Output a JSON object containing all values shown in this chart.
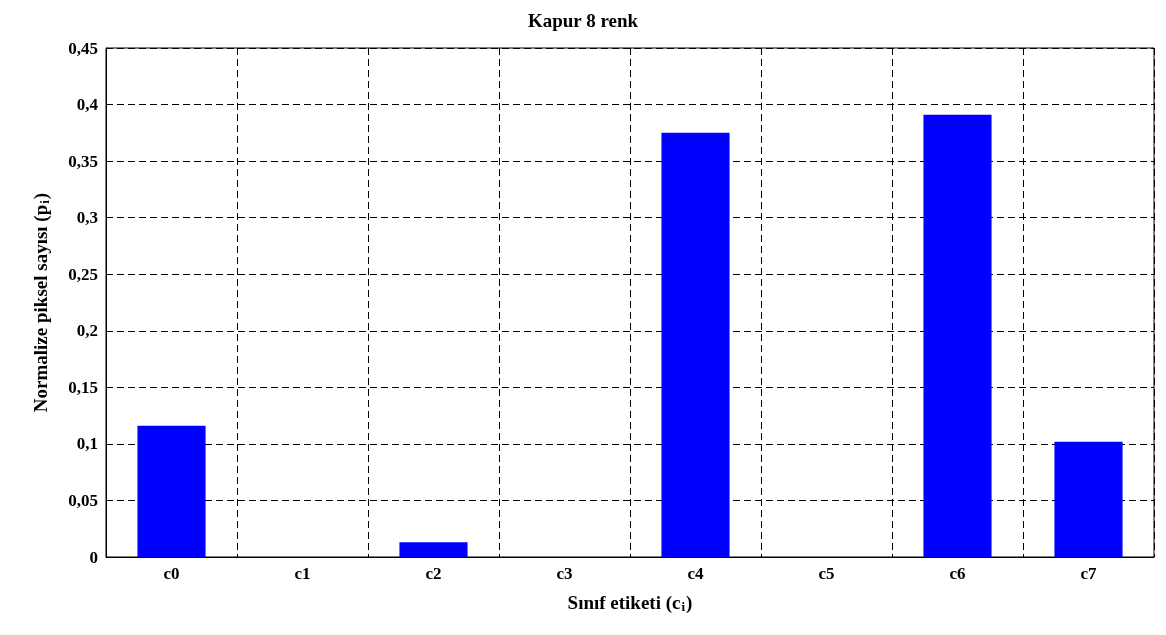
{
  "chart_data": {
    "type": "bar",
    "title": "Kapur 8 renk",
    "xlabel": "Sınıf etiketi (c$_{i}$)",
    "ylabel": "Normalize piksel sayısı (p$_{i}$)",
    "categories": [
      "c0",
      "c1",
      "c2",
      "c3",
      "c4",
      "c5",
      "c6",
      "c7"
    ],
    "values": [
      0.116,
      0,
      0.013,
      0,
      0.375,
      0,
      0.391,
      0.102
    ],
    "color": "#0000ff",
    "ylim": [
      0,
      0.45
    ],
    "yticks": [
      {
        "value": 0,
        "label": "0"
      },
      {
        "value": 0.05,
        "label": "0,05"
      },
      {
        "value": 0.1,
        "label": "0,1"
      },
      {
        "value": 0.15,
        "label": "0,15"
      },
      {
        "value": 0.2,
        "label": "0,2"
      },
      {
        "value": 0.25,
        "label": "0,25"
      },
      {
        "value": 0.3,
        "label": "0,3"
      },
      {
        "value": 0.35,
        "label": "0,35"
      },
      {
        "value": 0.4,
        "label": "0,4"
      },
      {
        "value": 0.45,
        "label": "0,45"
      }
    ],
    "grid": true
  }
}
